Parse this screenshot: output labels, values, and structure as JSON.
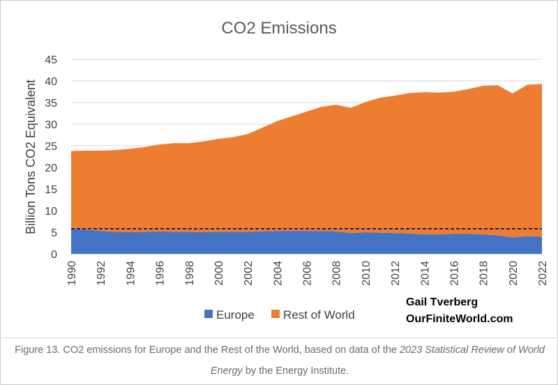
{
  "chart_data": {
    "type": "area",
    "title": "CO2 Emissions",
    "xlabel": "",
    "ylabel": "Billion Tons CO2 Equivalent",
    "ylim": [
      0,
      45
    ],
    "yticks": [
      "0",
      "5",
      "10",
      "15",
      "20",
      "25",
      "30",
      "35",
      "40",
      "45"
    ],
    "x": [
      1990,
      1991,
      1992,
      1993,
      1994,
      1995,
      1996,
      1997,
      1998,
      1999,
      2000,
      2001,
      2002,
      2003,
      2004,
      2005,
      2006,
      2007,
      2008,
      2009,
      2010,
      2011,
      2012,
      2013,
      2014,
      2015,
      2016,
      2017,
      2018,
      2019,
      2020,
      2021,
      2022
    ],
    "xtick_labels": [
      "1990",
      "1992",
      "1994",
      "1996",
      "1998",
      "2000",
      "2002",
      "2004",
      "2006",
      "2008",
      "2010",
      "2012",
      "2014",
      "2016",
      "2018",
      "2020",
      "2022"
    ],
    "stacked": true,
    "series": [
      {
        "name": "Europe",
        "color": "#4472c4",
        "values": [
          5.8,
          5.6,
          5.3,
          5.1,
          5.0,
          5.1,
          5.2,
          5.1,
          5.1,
          5.0,
          5.1,
          5.1,
          5.1,
          5.2,
          5.3,
          5.3,
          5.3,
          5.3,
          5.2,
          4.8,
          5.0,
          4.9,
          4.8,
          4.7,
          4.5,
          4.5,
          4.6,
          4.6,
          4.5,
          4.3,
          3.8,
          4.1,
          4.0
        ]
      },
      {
        "name": "Rest of World",
        "color": "#ed7d31",
        "values": [
          18.0,
          18.3,
          18.6,
          18.9,
          19.3,
          19.6,
          20.1,
          20.5,
          20.5,
          21.0,
          21.5,
          21.9,
          22.6,
          24.0,
          25.4,
          26.5,
          27.6,
          28.7,
          29.3,
          29.0,
          30.1,
          31.2,
          31.8,
          32.5,
          32.9,
          32.8,
          32.9,
          33.5,
          34.4,
          34.7,
          33.3,
          35.0,
          35.3
        ]
      }
    ],
    "reference_line": {
      "value": 5.8,
      "style": "dashed",
      "color": "#1f1f5c"
    },
    "legend": {
      "position": "bottom",
      "items": [
        {
          "label": "Europe",
          "color": "#4472c4"
        },
        {
          "label": "Rest of World",
          "color": "#ed7d31"
        }
      ]
    }
  },
  "credit": {
    "author": "Gail Tverberg",
    "site": "OurFiniteWorld.com"
  },
  "caption": {
    "prefix": "Figure 13. CO2 emissions for Europe and the Rest of the World, based on data of the ",
    "italic": "2023 Statistical Review of World Energy",
    "suffix": " by the Energy Institute."
  }
}
